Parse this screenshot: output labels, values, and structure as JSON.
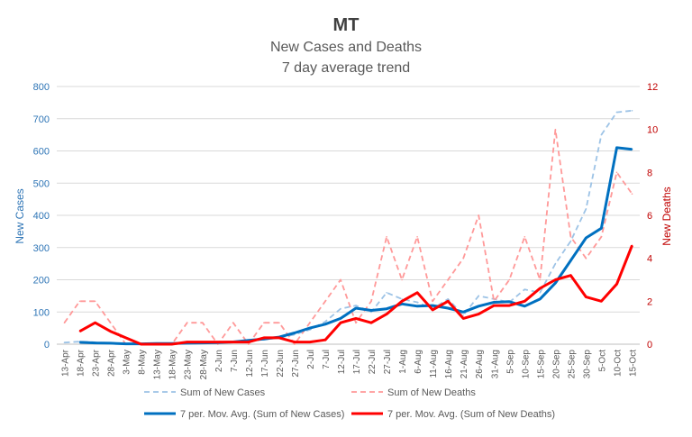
{
  "chart_data": {
    "type": "line",
    "title": "MT",
    "subtitle_lines": [
      "New Cases and Deaths",
      "7 day average trend"
    ],
    "ylabel_left": "New Cases",
    "ylabel_right": "New Deaths",
    "ylim_left": [
      0,
      800
    ],
    "ylim_right": [
      0,
      12
    ],
    "yticks_left": [
      0,
      100,
      200,
      300,
      400,
      500,
      600,
      700,
      800
    ],
    "yticks_right": [
      0,
      2,
      4,
      6,
      8,
      10,
      12
    ],
    "x_ticks": [
      "13-Apr",
      "18-Apr",
      "23-Apr",
      "28-Apr",
      "3-May",
      "8-May",
      "13-May",
      "18-May",
      "23-May",
      "28-May",
      "2-Jun",
      "7-Jun",
      "12-Jun",
      "17-Jun",
      "22-Jun",
      "27-Jun",
      "2-Jul",
      "7-Jul",
      "12-Jul",
      "17-Jul",
      "22-Jul",
      "27-Jul",
      "1-Aug",
      "6-Aug",
      "11-Aug",
      "16-Aug",
      "21-Aug",
      "26-Aug",
      "31-Aug",
      "5-Sep",
      "10-Sep",
      "15-Sep",
      "20-Sep",
      "25-Sep",
      "30-Sep",
      "5-Oct",
      "10-Oct",
      "15-Oct"
    ],
    "grid": true,
    "legend_position": "bottom",
    "colors": {
      "cases_daily": "#9dc3e6",
      "deaths_daily": "#ff9999",
      "cases_avg": "#0070c0",
      "deaths_avg": "#ff0000",
      "left_axis": "#2e75b6",
      "right_axis": "#c00000",
      "title": "#404040",
      "subtitle": "#595959",
      "tick": "#595959",
      "grid": "#d9d9d9"
    },
    "series": [
      {
        "name": "Sum of New Cases",
        "axis": "left",
        "style": "dashed",
        "x": [
          "13-Apr",
          "18-Apr",
          "23-Apr",
          "28-Apr",
          "3-May",
          "8-May",
          "13-May",
          "18-May",
          "23-May",
          "28-May",
          "2-Jun",
          "7-Jun",
          "12-Jun",
          "17-Jun",
          "22-Jun",
          "27-Jun",
          "2-Jul",
          "7-Jul",
          "12-Jul",
          "17-Jul",
          "22-Jul",
          "27-Jul",
          "1-Aug",
          "6-Aug",
          "11-Aug",
          "16-Aug",
          "21-Aug",
          "26-Aug",
          "31-Aug",
          "5-Sep",
          "10-Sep",
          "15-Sep",
          "20-Sep",
          "25-Sep",
          "30-Sep",
          "5-Oct",
          "10-Oct",
          "15-Oct"
        ],
        "values": [
          5,
          8,
          6,
          3,
          2,
          1,
          1,
          2,
          3,
          5,
          4,
          6,
          10,
          14,
          20,
          30,
          45,
          70,
          110,
          120,
          100,
          160,
          140,
          130,
          110,
          140,
          90,
          150,
          140,
          130,
          170,
          160,
          250,
          320,
          420,
          650,
          720,
          725
        ]
      },
      {
        "name": "Sum of New Deaths",
        "axis": "right",
        "style": "dashed",
        "x": [
          "13-Apr",
          "18-Apr",
          "23-Apr",
          "28-Apr",
          "3-May",
          "8-May",
          "13-May",
          "18-May",
          "23-May",
          "28-May",
          "2-Jun",
          "7-Jun",
          "12-Jun",
          "17-Jun",
          "22-Jun",
          "27-Jun",
          "2-Jul",
          "7-Jul",
          "12-Jul",
          "17-Jul",
          "22-Jul",
          "27-Jul",
          "1-Aug",
          "6-Aug",
          "11-Aug",
          "16-Aug",
          "21-Aug",
          "26-Aug",
          "31-Aug",
          "5-Sep",
          "10-Sep",
          "15-Sep",
          "20-Sep",
          "25-Sep",
          "30-Sep",
          "5-Oct",
          "10-Oct",
          "15-Oct"
        ],
        "values": [
          1,
          2,
          2,
          1,
          0,
          0,
          0,
          0,
          1,
          1,
          0,
          1,
          0,
          1,
          1,
          0,
          1,
          2,
          3,
          1,
          2,
          5,
          3,
          5,
          2,
          3,
          4,
          6,
          2,
          3,
          5,
          3,
          10,
          5,
          4,
          5,
          8,
          7
        ]
      },
      {
        "name": "7 per. Mov. Avg. (Sum of New Cases)",
        "axis": "left",
        "style": "solid",
        "x": [
          "18-Apr",
          "23-Apr",
          "28-Apr",
          "3-May",
          "8-May",
          "13-May",
          "18-May",
          "23-May",
          "28-May",
          "2-Jun",
          "7-Jun",
          "12-Jun",
          "17-Jun",
          "22-Jun",
          "27-Jun",
          "2-Jul",
          "7-Jul",
          "12-Jul",
          "17-Jul",
          "22-Jul",
          "27-Jul",
          "1-Aug",
          "6-Aug",
          "11-Aug",
          "16-Aug",
          "21-Aug",
          "26-Aug",
          "31-Aug",
          "5-Sep",
          "10-Sep",
          "15-Sep",
          "20-Sep",
          "25-Sep",
          "30-Sep",
          "5-Oct",
          "10-Oct",
          "15-Oct"
        ],
        "values": [
          6,
          4,
          3,
          1,
          1,
          2,
          2,
          3,
          4,
          5,
          7,
          12,
          16,
          22,
          35,
          50,
          62,
          80,
          112,
          105,
          110,
          125,
          118,
          120,
          112,
          100,
          118,
          130,
          132,
          118,
          140,
          190,
          260,
          330,
          360,
          610,
          605
        ]
      },
      {
        "name": "7 per. Mov. Avg. (Sum of New Deaths)",
        "axis": "right",
        "style": "solid",
        "x": [
          "18-Apr",
          "23-Apr",
          "28-Apr",
          "3-May",
          "8-May",
          "13-May",
          "18-May",
          "23-May",
          "28-May",
          "2-Jun",
          "7-Jun",
          "12-Jun",
          "17-Jun",
          "22-Jun",
          "27-Jun",
          "2-Jul",
          "7-Jul",
          "12-Jul",
          "17-Jul",
          "22-Jul",
          "27-Jul",
          "1-Aug",
          "6-Aug",
          "11-Aug",
          "16-Aug",
          "21-Aug",
          "26-Aug",
          "31-Aug",
          "5-Sep",
          "10-Sep",
          "15-Sep",
          "20-Sep",
          "25-Sep",
          "30-Sep",
          "5-Oct",
          "10-Oct",
          "15-Oct"
        ],
        "values": [
          0.6,
          1.0,
          0.6,
          0.3,
          0.0,
          0.0,
          0.0,
          0.1,
          0.1,
          0.1,
          0.1,
          0.1,
          0.3,
          0.3,
          0.1,
          0.1,
          0.2,
          1.0,
          1.2,
          1.0,
          1.4,
          2.0,
          2.4,
          1.6,
          2.0,
          1.2,
          1.4,
          1.8,
          1.8,
          2.0,
          2.6,
          3.0,
          3.2,
          2.2,
          2.0,
          2.8,
          4.6
        ]
      }
    ]
  }
}
